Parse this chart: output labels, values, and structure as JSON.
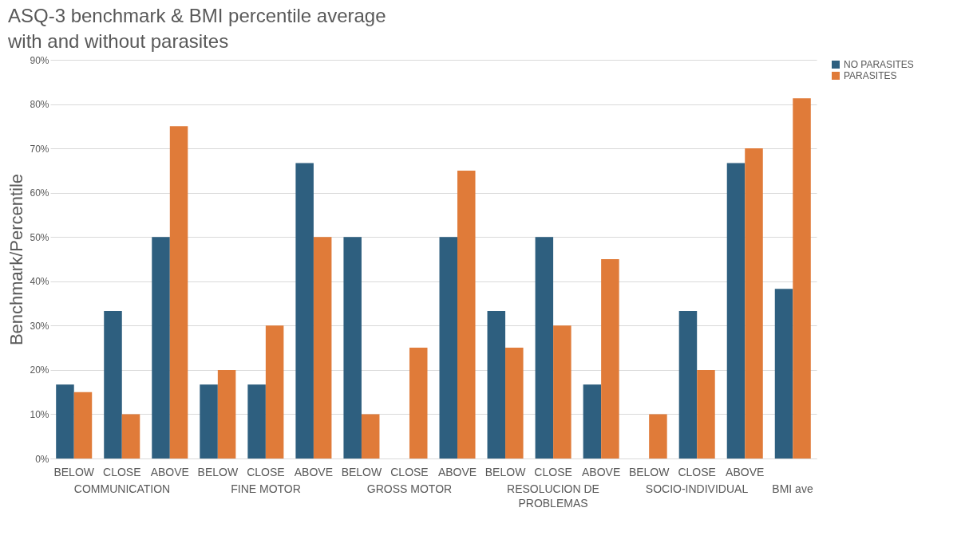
{
  "chart_data": {
    "type": "bar",
    "title": "ASQ-3 benchmark & BMI percentile average\nwith and without parasites",
    "ylabel": "Benchmark/Percentile",
    "categories": [
      "BELOW",
      "CLOSE",
      "ABOVE",
      "BELOW",
      "CLOSE",
      "ABOVE",
      "BELOW",
      "CLOSE",
      "ABOVE",
      "BELOW",
      "CLOSE",
      "ABOVE",
      "BELOW",
      "CLOSE",
      "ABOVE",
      null
    ],
    "annotations": [
      "COMMUNICATION",
      "FINE MOTOR",
      "GROSS MOTOR",
      "RESOLUCION DE\nPROBLEMAS",
      "SOCIO-INDIVIDUAL",
      "BMI ave"
    ],
    "series": [
      {
        "name": "NO PARASITES",
        "color": "#2e5f7f",
        "values": [
          16.7,
          33.3,
          50,
          16.7,
          16.7,
          66.7,
          50,
          0,
          50,
          33.3,
          50,
          16.7,
          0,
          33.3,
          66.7,
          38.3
        ]
      },
      {
        "name": "PARASITES",
        "color": "#e07b39",
        "values": [
          15,
          10,
          75,
          20,
          30,
          50,
          10,
          25,
          65,
          25,
          30,
          45,
          10,
          20,
          70,
          81.3
        ]
      }
    ],
    "ylim": [
      0,
      90
    ],
    "yticks": [
      {
        "value": 0,
        "label": "0%"
      },
      {
        "value": 10,
        "label": "10%"
      },
      {
        "value": 20,
        "label": "20%"
      },
      {
        "value": 30,
        "label": "30%"
      },
      {
        "value": 40,
        "label": "40%"
      },
      {
        "value": 50,
        "label": "50%"
      },
      {
        "value": 60,
        "label": "60%"
      },
      {
        "value": 70,
        "label": "70%"
      },
      {
        "value": 80,
        "label": "80%"
      },
      {
        "value": 90,
        "label": "90%"
      }
    ],
    "grid": "y",
    "legend": "right"
  }
}
